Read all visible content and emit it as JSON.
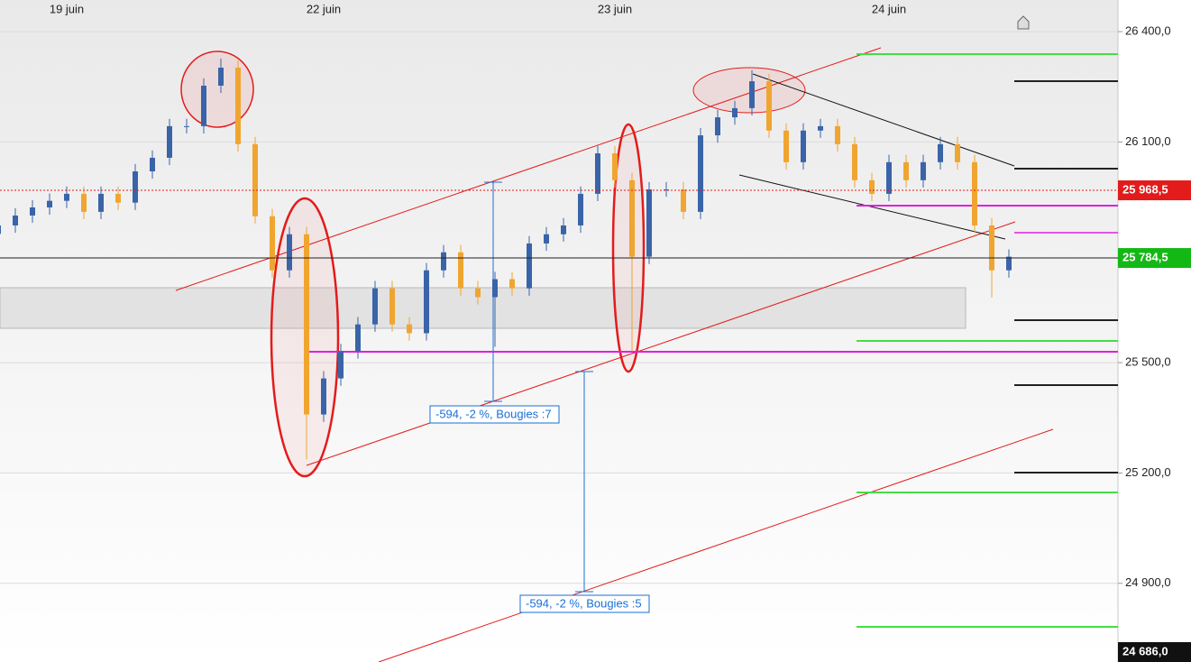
{
  "chart_data": {
    "type": "candlestick",
    "categories": [
      null,
      null,
      null,
      null,
      "19 juin",
      null,
      null,
      null,
      null,
      null,
      null,
      null,
      null,
      null,
      null,
      null,
      null,
      null,
      null,
      "22 juin",
      null,
      null,
      null,
      null,
      null,
      null,
      null,
      null,
      null,
      null,
      null,
      null,
      null,
      null,
      null,
      null,
      "23 juin",
      null,
      null,
      null,
      null,
      null,
      null,
      null,
      null,
      null,
      null,
      null,
      null,
      null,
      null,
      null,
      "24 juin",
      null,
      null,
      null,
      null,
      null,
      null,
      null
    ],
    "open": [
      25850,
      25873,
      25900,
      25922,
      25940,
      25959,
      25910,
      25959,
      25935,
      26020,
      26057,
      26143,
      26143,
      26253,
      26302,
      26094,
      25898,
      25751,
      25849,
      25359,
      25457,
      25531,
      25604,
      25702,
      25604,
      25580,
      25751,
      25800,
      25702,
      25678,
      25727,
      25702,
      25824,
      25849,
      25873,
      25959,
      26069,
      25996,
      25788,
      25971,
      25971,
      25910,
      26118,
      26167,
      26192,
      26265,
      26131,
      26045,
      26131,
      26143,
      26094,
      25996,
      25959,
      26045,
      25996,
      26045,
      26094,
      26045,
      25873,
      25751
    ],
    "high": [
      25893,
      25920,
      25942,
      25960,
      25979,
      25979,
      25979,
      25979,
      26040,
      26077,
      26163,
      26163,
      26273,
      26327,
      26322,
      26114,
      25918,
      25869,
      25869,
      25477,
      25551,
      25624,
      25722,
      25722,
      25624,
      25771,
      25820,
      25820,
      25722,
      25747,
      25747,
      25844,
      25869,
      25893,
      25979,
      26089,
      26089,
      26016,
      25991,
      25991,
      25991,
      26138,
      26187,
      26212,
      26295,
      26285,
      26151,
      26151,
      26163,
      26163,
      26114,
      26016,
      26065,
      26065,
      26065,
      26114,
      26114,
      26065,
      25893,
      25808
    ],
    "low": [
      25830,
      25853,
      25880,
      25902,
      25920,
      25890,
      25890,
      25915,
      25915,
      26000,
      26037,
      26123,
      26123,
      26233,
      26074,
      25878,
      25731,
      25731,
      25237,
      25339,
      25437,
      25511,
      25584,
      25584,
      25560,
      25560,
      25731,
      25682,
      25658,
      25543,
      25682,
      25682,
      25804,
      25829,
      25853,
      25939,
      25976,
      25531,
      25768,
      25951,
      25890,
      25890,
      26098,
      26147,
      26172,
      26111,
      26025,
      26025,
      26111,
      26074,
      25976,
      25939,
      25939,
      25976,
      25976,
      26025,
      26025,
      25853,
      25677,
      25731
    ],
    "close": [
      25873,
      25900,
      25922,
      25940,
      25959,
      25910,
      25959,
      25935,
      26020,
      26057,
      26143,
      26143,
      26253,
      26302,
      26094,
      25898,
      25751,
      25849,
      25359,
      25457,
      25531,
      25604,
      25702,
      25604,
      25580,
      25751,
      25800,
      25702,
      25678,
      25727,
      25702,
      25824,
      25849,
      25873,
      25959,
      26069,
      25996,
      25788,
      25971,
      25971,
      25910,
      26118,
      26167,
      26192,
      26265,
      26131,
      26045,
      26131,
      26143,
      26094,
      25996,
      25959,
      26045,
      25996,
      26045,
      26094,
      26045,
      25873,
      25751,
      25788
    ],
    "up_color": "#3a64a8",
    "down_color": "#f0a530",
    "ylim": [
      24686,
      26486
    ],
    "yticks": [
      {
        "value": 26400,
        "label": "26 400,0"
      },
      {
        "value": 26100,
        "label": "26 100,0"
      },
      {
        "value": 25500,
        "label": "25 500,0"
      },
      {
        "value": 25200,
        "label": "25 200,0"
      },
      {
        "value": 24900,
        "label": "24 900,0"
      }
    ],
    "grid": true,
    "price_labels": [
      {
        "value": 25968.5,
        "label": "25 968,5",
        "color": "#e31b1b"
      },
      {
        "value": 25784.5,
        "label": "25 784,5",
        "color": "#14b814"
      },
      {
        "value": 24686,
        "label": "24 686,0",
        "color": "#111111"
      }
    ],
    "annotations": [
      "-594, -2 %, Bougies :7",
      "-594, -2 %, Bougies :5"
    ]
  }
}
